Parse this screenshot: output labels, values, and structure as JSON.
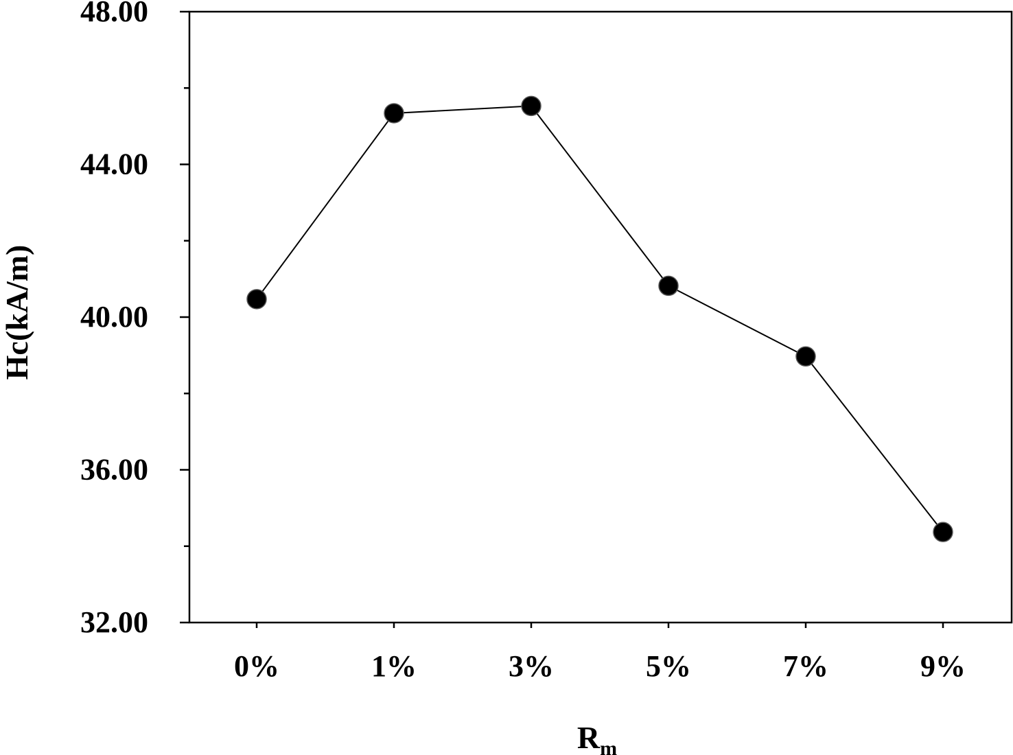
{
  "chart_data": {
    "type": "line",
    "title": "",
    "xlabel": "R",
    "xlabel_subscript": "m",
    "ylabel": "Hc(kA/m)",
    "categories": [
      "0%",
      "1%",
      "3%",
      "5%",
      "7%",
      "9%"
    ],
    "series": [
      {
        "values": [
          40.47,
          45.34,
          45.53,
          40.82,
          38.97,
          34.37
        ]
      }
    ],
    "ylim": [
      32.0,
      48.0
    ],
    "y_ticks_major": [
      "48.00",
      "44.00",
      "40.00",
      "36.00",
      "32.00"
    ],
    "y_tick_values_major": [
      48,
      44,
      40,
      36,
      32
    ],
    "y_tick_values_minor": [
      46,
      42,
      38,
      34
    ],
    "grid": false,
    "marker": "filled-circle",
    "line_color": "#000000",
    "marker_color": "#000000"
  }
}
